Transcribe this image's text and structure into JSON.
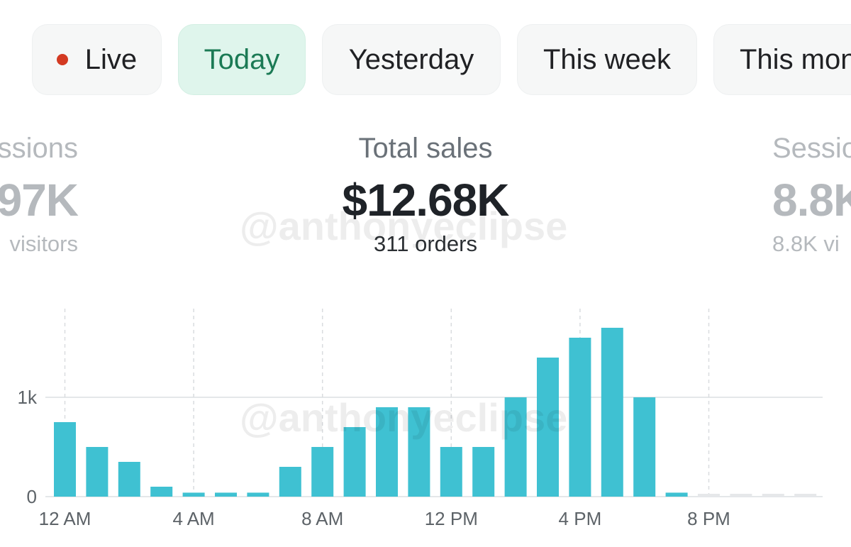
{
  "tabs": [
    {
      "label": "Live",
      "active": false,
      "dot_color": "#d33a22"
    },
    {
      "label": "Today",
      "active": true
    },
    {
      "label": "Yesterday",
      "active": false
    },
    {
      "label": "This week",
      "active": false
    },
    {
      "label": "This mon",
      "active": false
    }
  ],
  "metrics": {
    "left": {
      "label": "ssions",
      "value": "97K",
      "sub": "visitors"
    },
    "center": {
      "label": "Total sales",
      "value": "$12.68K",
      "sub": "311 orders"
    },
    "right": {
      "label": "Sessio",
      "value": "8.8K",
      "sub": "8.8K vi"
    }
  },
  "watermark": "@anthonyeclipse",
  "colors": {
    "bar": "#3fc1d2",
    "empty_bar": "#e6e8ea",
    "accent_green": "#1b7a55"
  },
  "chart_data": {
    "type": "bar",
    "x_labels": [
      "12 AM",
      "4 AM",
      "8 AM",
      "12 PM",
      "4 PM",
      "8 PM"
    ],
    "y_ticks": [
      {
        "value": 0,
        "label": "0"
      },
      {
        "value": 1000,
        "label": "1k"
      }
    ],
    "categories": [
      "12 AM",
      "1 AM",
      "2 AM",
      "3 AM",
      "4 AM",
      "5 AM",
      "6 AM",
      "7 AM",
      "8 AM",
      "9 AM",
      "10 AM",
      "11 AM",
      "12 PM",
      "1 PM",
      "2 PM",
      "3 PM",
      "4 PM",
      "5 PM",
      "6 PM",
      "7 PM",
      "8 PM",
      "9 PM",
      "10 PM",
      "11 PM"
    ],
    "values": [
      750,
      500,
      350,
      100,
      40,
      40,
      40,
      300,
      500,
      700,
      900,
      900,
      500,
      500,
      1000,
      1400,
      1600,
      1700,
      1000,
      40,
      0,
      0,
      0,
      0
    ],
    "ylim": [
      0,
      1700
    ]
  }
}
